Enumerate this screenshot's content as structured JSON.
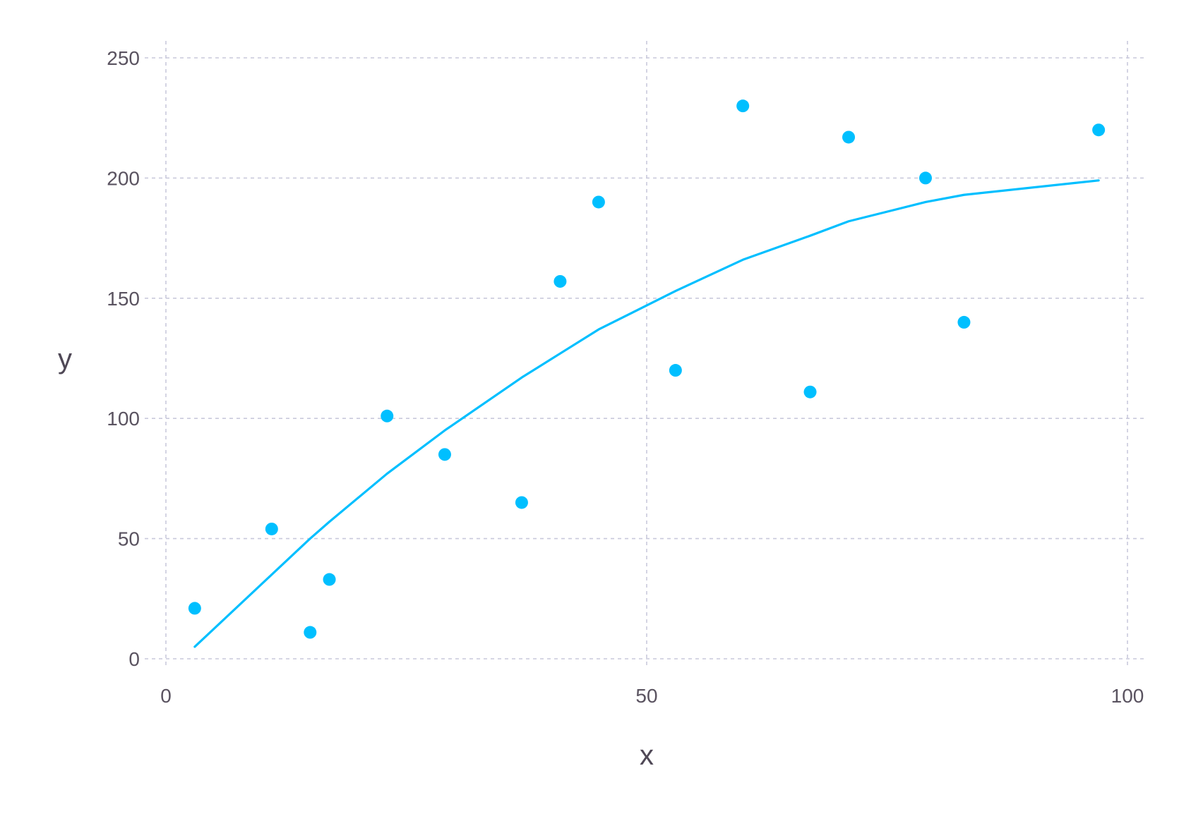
{
  "chart_data": {
    "type": "scatter",
    "xlabel": "x",
    "ylabel": "y",
    "xlim": [
      0,
      100
    ],
    "ylim": [
      0,
      250
    ],
    "x_ticks": [
      0,
      50,
      100
    ],
    "y_ticks": [
      0,
      50,
      100,
      150,
      200,
      250
    ],
    "grid": true,
    "colors": {
      "series": "#00bfff",
      "grid": "#c9c9dc",
      "text": "#5a5360"
    },
    "series": [
      {
        "type": "scatter",
        "x": [
          3,
          11,
          15,
          17,
          23,
          29,
          37,
          41,
          45,
          53,
          60,
          67,
          71,
          79,
          83,
          97
        ],
        "y": [
          21,
          54,
          11,
          33,
          101,
          85,
          65,
          157,
          190,
          120,
          230,
          111,
          217,
          200,
          140,
          220
        ]
      },
      {
        "type": "line",
        "x": [
          3,
          11,
          15,
          17,
          23,
          29,
          37,
          41,
          45,
          53,
          60,
          67,
          71,
          79,
          83,
          97
        ],
        "y": [
          5,
          35,
          50,
          57,
          77,
          95,
          117,
          127,
          137,
          153,
          166,
          176,
          182,
          190,
          193,
          199
        ]
      }
    ]
  }
}
